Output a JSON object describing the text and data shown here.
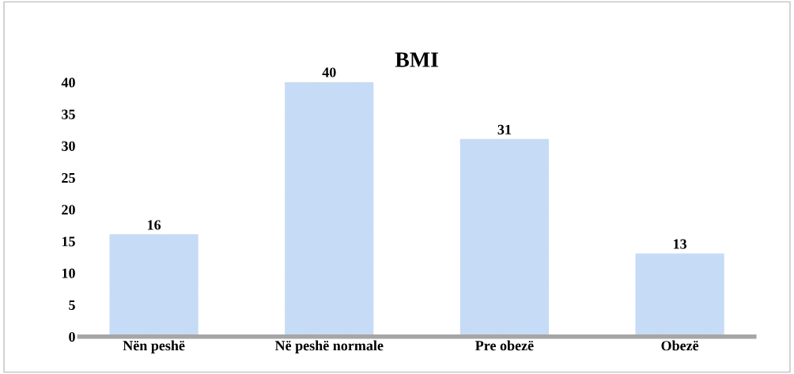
{
  "chart_data": {
    "type": "bar",
    "title": "BMI",
    "categories": [
      "Nën peshë",
      "Në peshë normale",
      "Pre obezë",
      "Obezë"
    ],
    "values": [
      16,
      40,
      31,
      13
    ],
    "color": "#c6dbf5",
    "ylim": [
      0,
      40
    ],
    "yticks": [
      0,
      5,
      10,
      15,
      20,
      25,
      30,
      35,
      40
    ],
    "grid": false,
    "data_labels": true
  }
}
